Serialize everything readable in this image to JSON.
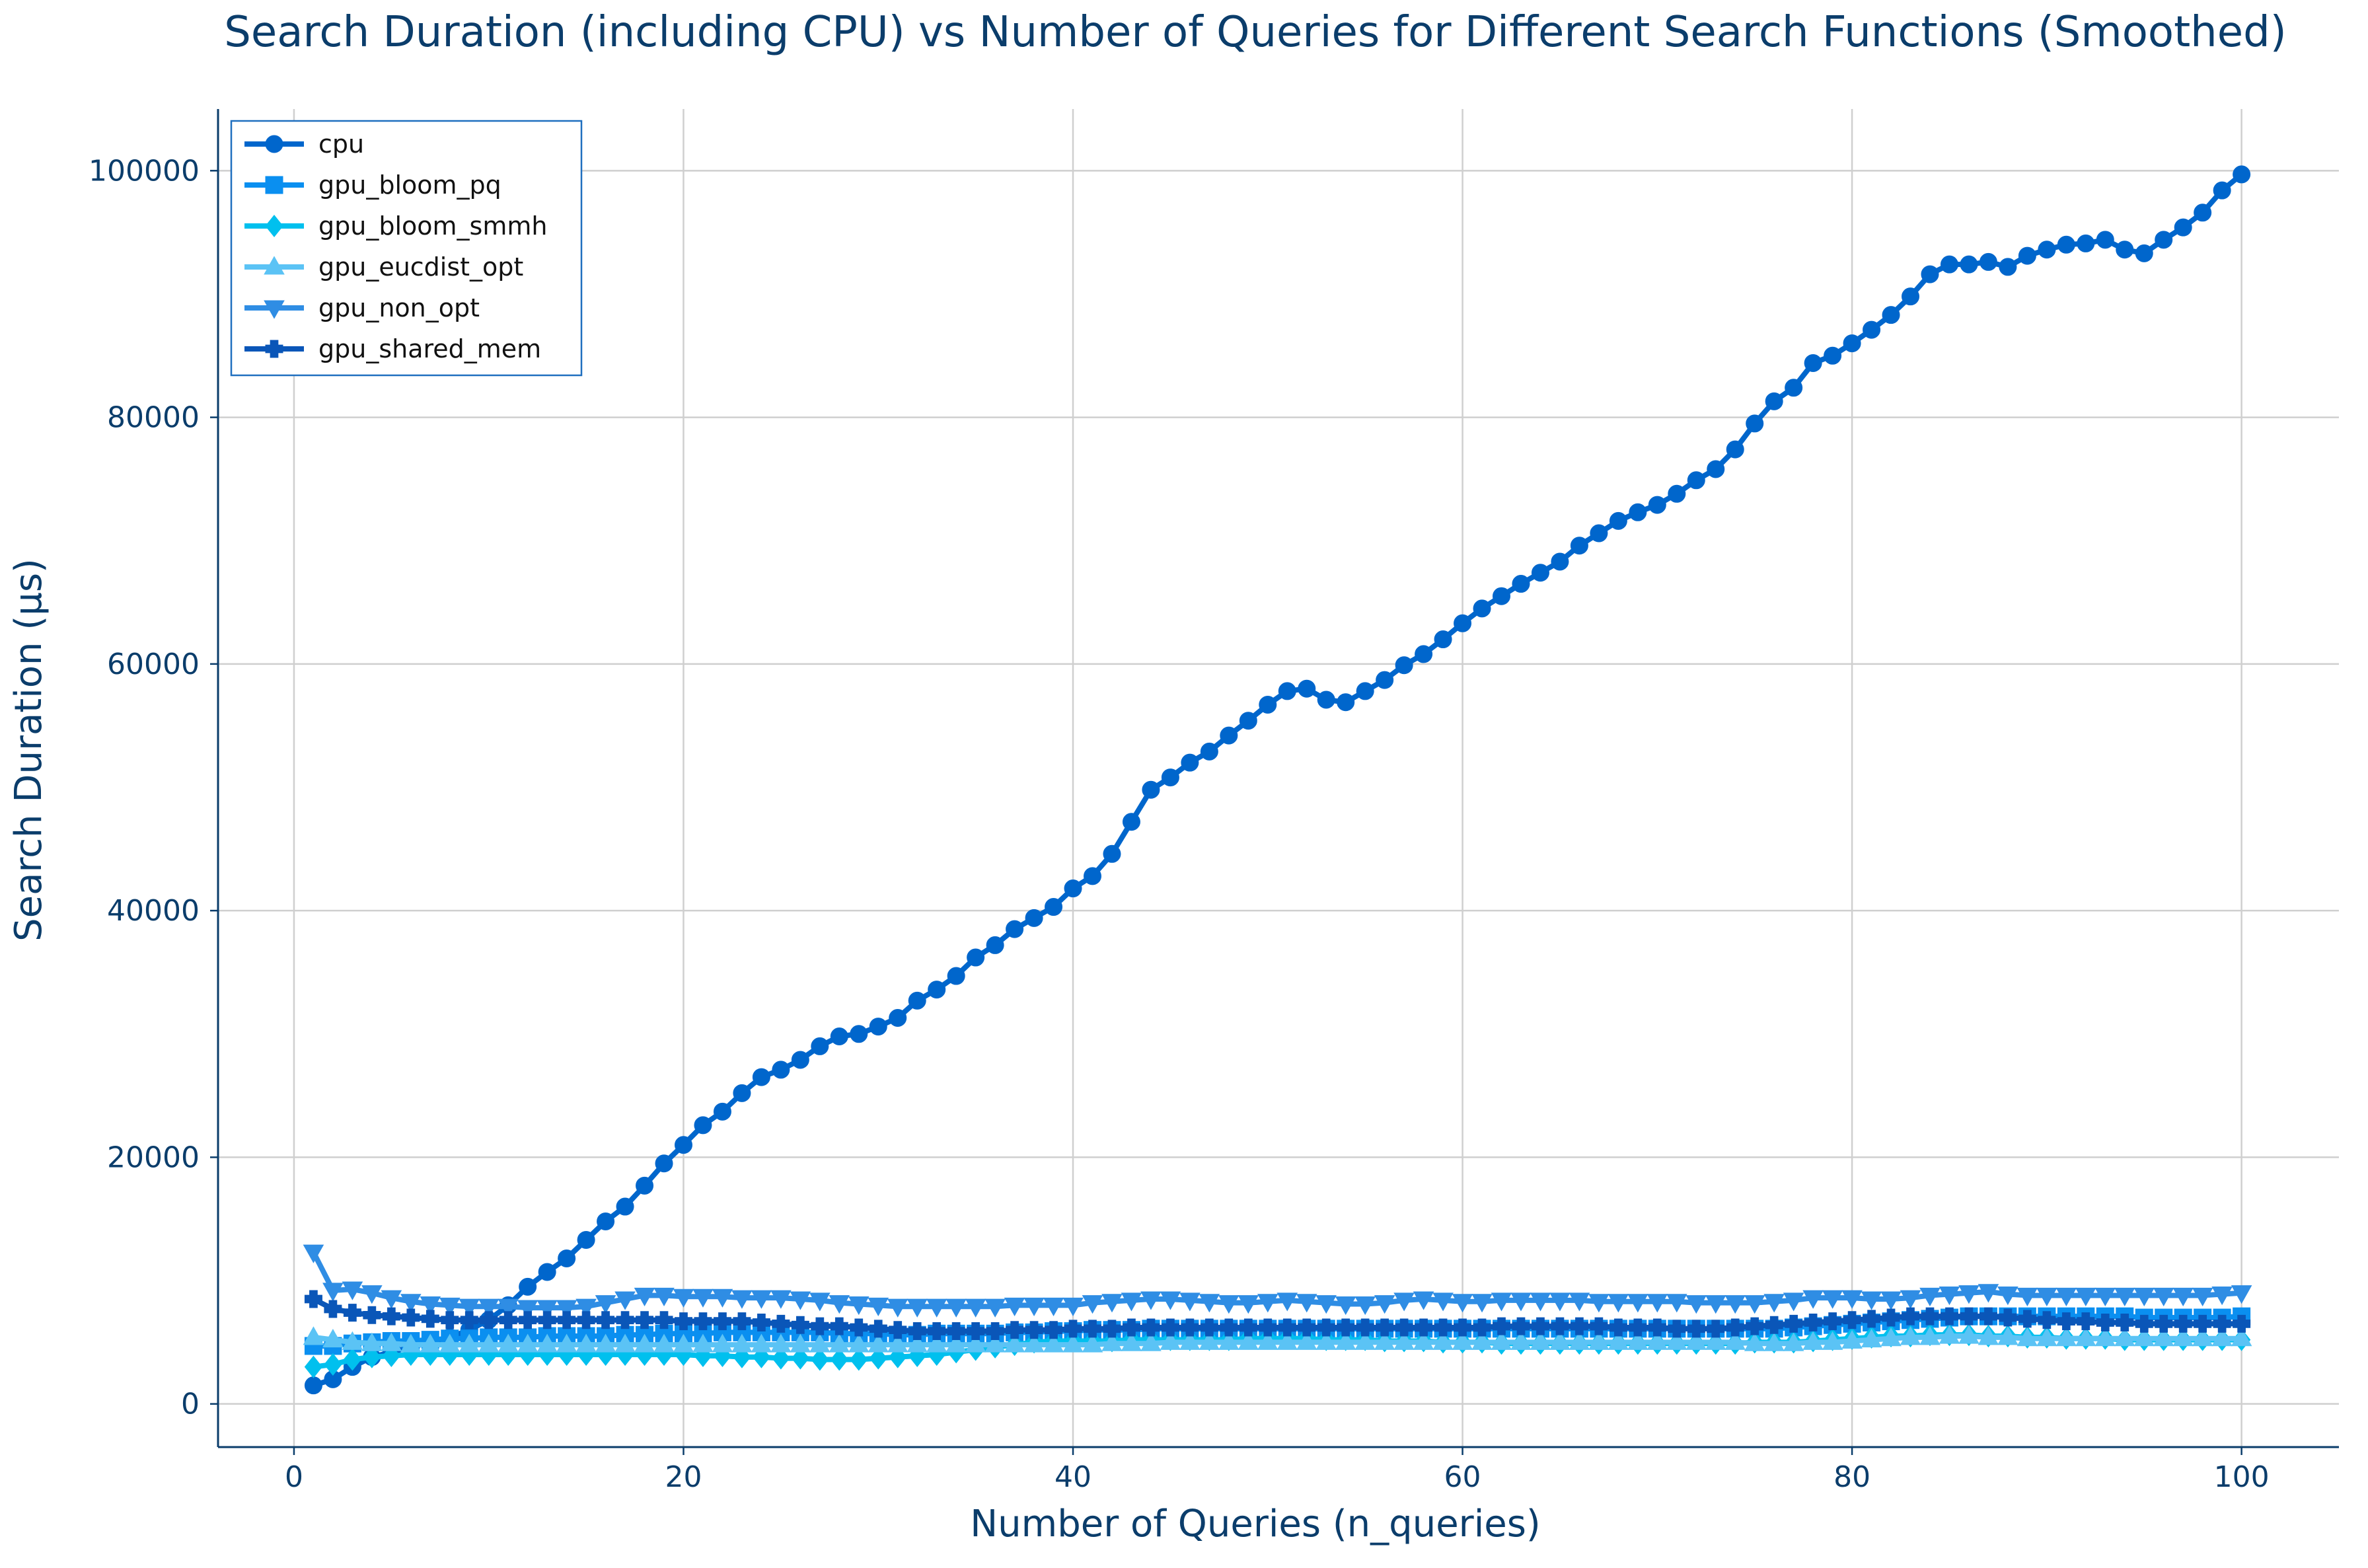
{
  "chart_data": {
    "type": "line",
    "title": "Search Duration (including CPU) vs Number of Queries for Different Search Functions (Smoothed)",
    "xlabel": "Number of Queries (n_queries)",
    "ylabel": "Search Duration (μs)",
    "xlim": [
      -3.9,
      105
    ],
    "ylim": [
      -3500,
      105000
    ],
    "xticks": [
      0,
      20,
      40,
      60,
      80,
      100
    ],
    "yticks": [
      0,
      20000,
      40000,
      60000,
      80000,
      100000
    ],
    "xtick_labels": [
      "0",
      "20",
      "40",
      "60",
      "80",
      "100"
    ],
    "ytick_labels": [
      "0",
      "20000",
      "40000",
      "60000",
      "80000",
      "100000"
    ],
    "grid": true,
    "legend_position": "top-left",
    "x_start": 1,
    "x_step": 1,
    "series": [
      {
        "name": "cpu",
        "color": "#0066cc",
        "marker": "circle",
        "values": [
          1500,
          2000,
          3000,
          3800,
          4200,
          4600,
          5000,
          5400,
          6000,
          6800,
          8000,
          9500,
          10700,
          11800,
          13300,
          14800,
          16000,
          17700,
          19500,
          21000,
          22600,
          23700,
          25200,
          26500,
          27100,
          27900,
          29000,
          29800,
          30000,
          30600,
          31300,
          32700,
          33600,
          34700,
          36200,
          37200,
          38500,
          39400,
          40300,
          41800,
          42800,
          44600,
          47200,
          49800,
          50800,
          52000,
          52900,
          54200,
          55400,
          56700,
          57800,
          58000,
          57100,
          56900,
          57800,
          58700,
          59900,
          60800,
          62000,
          63300,
          64500,
          65500,
          66500,
          67400,
          68300,
          69600,
          70600,
          71600,
          72300,
          72900,
          73800,
          74900,
          75800,
          77400,
          79500,
          81300,
          82400,
          84400,
          85000,
          86000,
          87100,
          88300,
          89800,
          91600,
          92400,
          92400,
          92600,
          92200,
          93100,
          93600,
          94000,
          94100,
          94400,
          93600,
          93300,
          94400,
          95400,
          96600,
          98400,
          99700
        ]
      },
      {
        "name": "gpu_bloom_pq",
        "color": "#0a8ff0",
        "marker": "square",
        "values": [
          4700,
          4700,
          4900,
          5000,
          5100,
          5100,
          5200,
          5300,
          5300,
          5400,
          5400,
          5400,
          5500,
          5500,
          5500,
          5500,
          5600,
          5600,
          5700,
          5700,
          5700,
          5800,
          5800,
          5800,
          5800,
          5800,
          5800,
          5700,
          5700,
          5700,
          5600,
          5600,
          5700,
          5700,
          5700,
          5700,
          5800,
          5800,
          5900,
          5900,
          6000,
          6000,
          6000,
          6100,
          6100,
          6100,
          6100,
          6100,
          6100,
          6100,
          6100,
          6100,
          6100,
          6100,
          6100,
          6100,
          6100,
          6100,
          6100,
          6100,
          6100,
          6100,
          6100,
          6100,
          6100,
          6100,
          6100,
          6100,
          6100,
          6100,
          6100,
          6100,
          6100,
          6100,
          6100,
          6100,
          6200,
          6300,
          6400,
          6500,
          6600,
          6700,
          6800,
          6900,
          7000,
          7100,
          7100,
          7100,
          7100,
          7100,
          7100,
          7100,
          7100,
          7100,
          7000,
          7000,
          7000,
          7000,
          7000,
          7100
        ]
      },
      {
        "name": "gpu_bloom_smmh",
        "color": "#00c0ee",
        "marker": "diamond",
        "values": [
          3000,
          3200,
          3600,
          3800,
          3900,
          4000,
          4000,
          4000,
          4000,
          4000,
          4000,
          4000,
          4000,
          4000,
          4000,
          4000,
          4000,
          4000,
          4000,
          4000,
          3900,
          3900,
          3800,
          3800,
          3700,
          3700,
          3600,
          3600,
          3600,
          3700,
          3800,
          3900,
          4000,
          4200,
          4400,
          4600,
          4800,
          5000,
          5100,
          5100,
          5100,
          5100,
          5200,
          5200,
          5200,
          5200,
          5200,
          5200,
          5300,
          5300,
          5300,
          5300,
          5200,
          5200,
          5200,
          5100,
          5100,
          5100,
          5000,
          5000,
          5000,
          4900,
          4900,
          4900,
          4900,
          4900,
          4900,
          4900,
          4900,
          4900,
          4900,
          4900,
          4900,
          4900,
          5000,
          5000,
          5000,
          5100,
          5200,
          5300,
          5400,
          5500,
          5500,
          5600,
          5600,
          5600,
          5500,
          5500,
          5400,
          5400,
          5300,
          5300,
          5300,
          5200,
          5200,
          5200,
          5200,
          5200,
          5200,
          5200
        ]
      },
      {
        "name": "gpu_eucdist_opt",
        "color": "#5bc3f5",
        "marker": "triangle-up",
        "values": [
          5400,
          5200,
          5000,
          4900,
          4900,
          4800,
          4800,
          4800,
          4800,
          4800,
          4800,
          4800,
          4800,
          4800,
          4800,
          4800,
          4800,
          4800,
          4800,
          4800,
          4800,
          4800,
          4800,
          4800,
          4800,
          4800,
          4800,
          4800,
          4800,
          4800,
          4800,
          4800,
          4800,
          4800,
          4800,
          4800,
          4800,
          4800,
          4800,
          4800,
          4800,
          4900,
          4900,
          4900,
          5000,
          5000,
          5000,
          5000,
          5000,
          5000,
          5000,
          5000,
          5000,
          5000,
          5000,
          5000,
          5000,
          5000,
          5000,
          5000,
          5000,
          5000,
          5000,
          5000,
          5000,
          5000,
          5000,
          5000,
          5000,
          5000,
          5000,
          5000,
          5000,
          5000,
          4900,
          4900,
          4900,
          5000,
          5000,
          5100,
          5200,
          5300,
          5400,
          5400,
          5500,
          5500,
          5400,
          5400,
          5300,
          5300,
          5300,
          5300,
          5300,
          5300,
          5300,
          5300,
          5300,
          5300,
          5300,
          5300
        ]
      },
      {
        "name": "gpu_non_opt",
        "color": "#2f8de4",
        "marker": "triangle-down",
        "values": [
          12300,
          9200,
          9300,
          9000,
          8600,
          8300,
          8100,
          8000,
          7900,
          7900,
          7900,
          7800,
          7800,
          7800,
          7900,
          8200,
          8500,
          8800,
          8800,
          8700,
          8700,
          8700,
          8600,
          8600,
          8600,
          8500,
          8400,
          8200,
          8100,
          8000,
          7900,
          7900,
          7900,
          7900,
          7900,
          7900,
          8000,
          8000,
          8000,
          8000,
          8200,
          8300,
          8400,
          8500,
          8500,
          8400,
          8300,
          8200,
          8200,
          8300,
          8400,
          8300,
          8200,
          8100,
          8100,
          8200,
          8400,
          8500,
          8400,
          8300,
          8300,
          8400,
          8400,
          8400,
          8400,
          8400,
          8300,
          8300,
          8300,
          8300,
          8300,
          8200,
          8200,
          8200,
          8200,
          8300,
          8400,
          8600,
          8600,
          8600,
          8500,
          8500,
          8600,
          8800,
          8900,
          9000,
          9100,
          8900,
          8800,
          8800,
          8800,
          8800,
          8800,
          8800,
          8800,
          8800,
          8800,
          8800,
          8900,
          9000
        ]
      },
      {
        "name": "gpu_shared_mem",
        "color": "#0a56b8",
        "marker": "plus",
        "values": [
          8500,
          7700,
          7400,
          7200,
          7100,
          7000,
          6900,
          6800,
          6800,
          6800,
          6800,
          6800,
          6800,
          6800,
          6800,
          6800,
          6800,
          6800,
          6800,
          6700,
          6700,
          6700,
          6700,
          6600,
          6500,
          6400,
          6300,
          6300,
          6200,
          6100,
          6000,
          5900,
          5900,
          5900,
          5900,
          5900,
          6000,
          6000,
          6000,
          6100,
          6100,
          6100,
          6200,
          6200,
          6200,
          6200,
          6200,
          6200,
          6200,
          6200,
          6200,
          6200,
          6200,
          6200,
          6200,
          6200,
          6200,
          6200,
          6200,
          6200,
          6200,
          6300,
          6300,
          6300,
          6300,
          6300,
          6300,
          6200,
          6200,
          6200,
          6100,
          6100,
          6100,
          6200,
          6300,
          6400,
          6500,
          6600,
          6700,
          6800,
          6900,
          7000,
          7100,
          7100,
          7100,
          7100,
          7100,
          7000,
          6900,
          6800,
          6700,
          6700,
          6600,
          6600,
          6500,
          6500,
          6500,
          6500,
          6500,
          6500
        ]
      }
    ]
  }
}
